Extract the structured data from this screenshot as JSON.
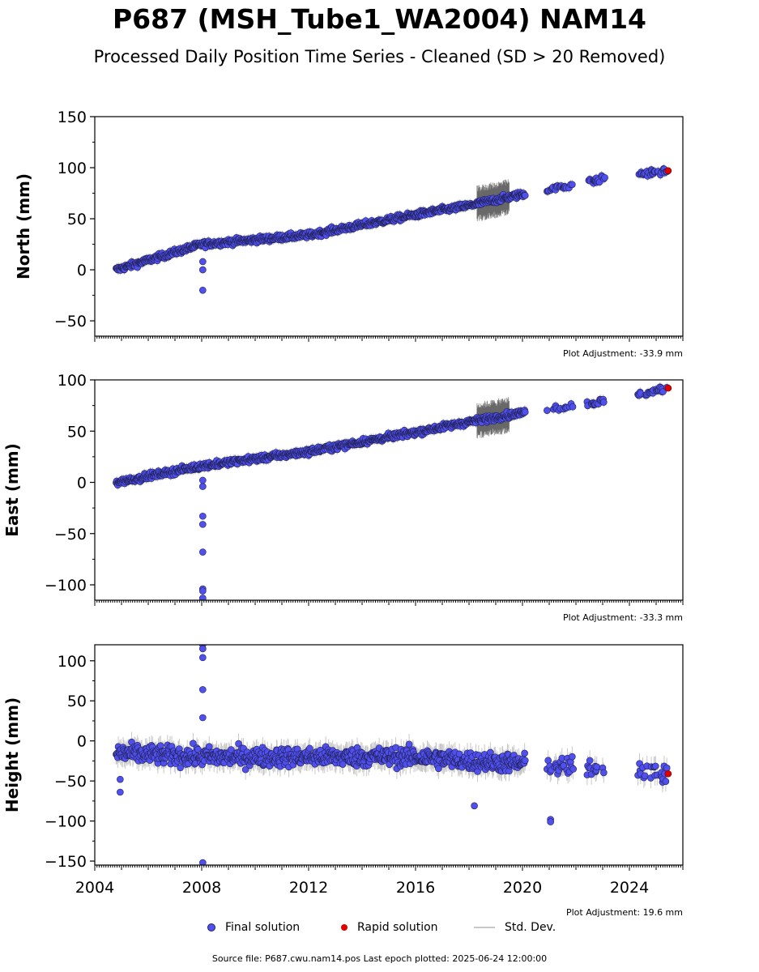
{
  "title": "P687 (MSH_Tube1_WA2004) NAM14",
  "subtitle": "Processed Daily Position Time Series - Cleaned (SD > 20 Removed)",
  "legend": {
    "final": "Final solution",
    "rapid": "Rapid solution",
    "std": "Std. Dev."
  },
  "source": "Source file: P687.cwu.nam14.pos  Last epoch plotted: 2025-06-24 12:00:00",
  "colors": {
    "final": "#5050f0",
    "rapid": "#e00000",
    "std": "#c8c8c8"
  },
  "chart_data": [
    {
      "type": "scatter",
      "ylabel": "North (mm)",
      "adjustment": "Plot Adjustment: -33.9 mm",
      "xlim": [
        2004.0,
        2026.0
      ],
      "ylim": [
        -65,
        150
      ],
      "yticks": [
        -50,
        0,
        50,
        100,
        150
      ],
      "ytick_labels": [
        "−50",
        "0",
        "50",
        "100",
        "150"
      ],
      "xtick_labels": [],
      "gaps": [
        [
          2020.1,
          2020.9
        ],
        [
          2021.9,
          2022.4
        ],
        [
          2023.1,
          2024.3
        ]
      ],
      "segments": [
        [
          2004.8,
          0
        ],
        [
          2008.0,
          25
        ],
        [
          2012.0,
          34
        ],
        [
          2016.0,
          54
        ],
        [
          2018.0,
          63
        ],
        [
          2020.0,
          74
        ],
        [
          2023.0,
          89
        ],
        [
          2024.4,
          94
        ],
        [
          2025.4,
          97
        ]
      ],
      "scatter": 3,
      "outliers": [
        [
          2008.04,
          -20
        ],
        [
          2008.04,
          0
        ],
        [
          2008.04,
          8
        ]
      ],
      "std_bands": [
        [
          2018.3,
          2019.5,
          18
        ]
      ],
      "rapid": [
        [
          2025.45,
          97
        ]
      ]
    },
    {
      "type": "scatter",
      "ylabel": "East (mm)",
      "adjustment": "Plot Adjustment: -33.3 mm",
      "xlim": [
        2004.0,
        2026.0
      ],
      "ylim": [
        -115,
        100
      ],
      "yticks": [
        -100,
        -50,
        0,
        50,
        100
      ],
      "ytick_labels": [
        "−100",
        "−50",
        "0",
        "50",
        "100"
      ],
      "xtick_labels": [],
      "gaps": [
        [
          2020.1,
          2020.9
        ],
        [
          2021.9,
          2022.4
        ],
        [
          2023.1,
          2024.3
        ]
      ],
      "segments": [
        [
          2004.8,
          0
        ],
        [
          2008.0,
          16
        ],
        [
          2012.0,
          30
        ],
        [
          2016.0,
          49
        ],
        [
          2018.0,
          59
        ],
        [
          2020.0,
          68
        ],
        [
          2023.0,
          79
        ],
        [
          2024.4,
          86
        ],
        [
          2025.4,
          92
        ]
      ],
      "scatter": 3,
      "outliers": [
        [
          2008.04,
          -4
        ],
        [
          2008.04,
          2
        ],
        [
          2008.04,
          -33
        ],
        [
          2008.04,
          -41
        ],
        [
          2008.04,
          -68
        ],
        [
          2008.04,
          -104
        ],
        [
          2008.04,
          -106
        ],
        [
          2008.04,
          -113
        ]
      ],
      "std_bands": [
        [
          2018.3,
          2019.5,
          18
        ]
      ],
      "rapid": [
        [
          2025.45,
          92
        ]
      ]
    },
    {
      "type": "scatter",
      "ylabel": "Height (mm)",
      "adjustment": "Plot Adjustment: 19.6 mm",
      "xlim": [
        2004.0,
        2026.0
      ],
      "ylim": [
        -155,
        120
      ],
      "yticks": [
        -150,
        -100,
        -50,
        0,
        50,
        100
      ],
      "ytick_labels": [
        "−150",
        "−100",
        "−50",
        "0",
        "50",
        "100"
      ],
      "xtick_labels": [
        "2004",
        "2008",
        "2012",
        "2016",
        "2020",
        "2024"
      ],
      "xtick_values": [
        2004,
        2008,
        2012,
        2016,
        2020,
        2024
      ],
      "gaps": [
        [
          2020.1,
          2020.9
        ],
        [
          2021.9,
          2022.4
        ],
        [
          2023.1,
          2024.3
        ]
      ],
      "segments": [
        [
          2004.8,
          -15
        ],
        [
          2008.0,
          -20
        ],
        [
          2012.0,
          -20
        ],
        [
          2016.0,
          -20
        ],
        [
          2018.0,
          -25
        ],
        [
          2020.0,
          -28
        ],
        [
          2023.0,
          -35
        ],
        [
          2024.4,
          -35
        ],
        [
          2025.4,
          -42
        ]
      ],
      "scatter": 12,
      "outliers": [
        [
          2008.04,
          120
        ],
        [
          2008.04,
          115
        ],
        [
          2008.04,
          104
        ],
        [
          2008.04,
          64
        ],
        [
          2008.04,
          29
        ],
        [
          2008.04,
          -152
        ],
        [
          2021.05,
          -98
        ],
        [
          2021.05,
          -101
        ],
        [
          2018.2,
          -81
        ],
        [
          2004.95,
          -64
        ],
        [
          2004.95,
          -48
        ]
      ],
      "std_bands": [],
      "rapid": [
        [
          2025.45,
          -41
        ]
      ]
    }
  ]
}
